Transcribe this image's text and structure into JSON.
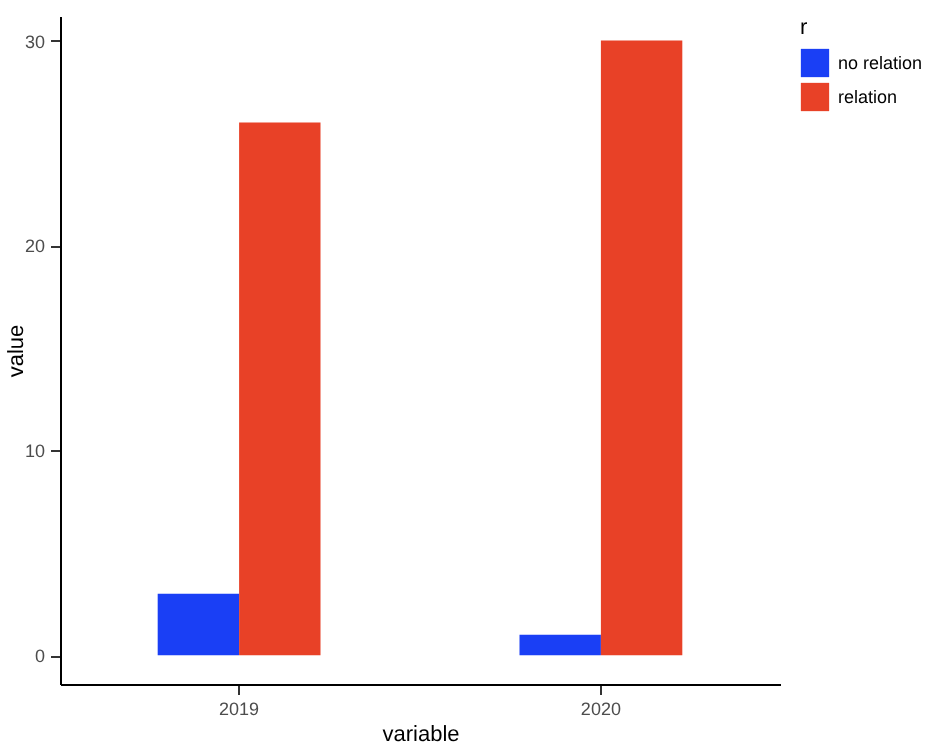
{
  "chart_data": {
    "type": "bar",
    "xlabel": "variable",
    "ylabel": "value",
    "legend_title": "r",
    "categories": [
      "2019",
      "2020"
    ],
    "series": [
      {
        "name": "no relation",
        "color": "#1a3ff5",
        "values": [
          3,
          1
        ]
      },
      {
        "name": "relation",
        "color": "#e84127",
        "values": [
          26,
          30
        ]
      }
    ],
    "ylim": [
      -1.4,
      31.2
    ],
    "yticks": [
      0,
      10,
      20,
      30
    ],
    "grid": false,
    "legend": "right"
  }
}
